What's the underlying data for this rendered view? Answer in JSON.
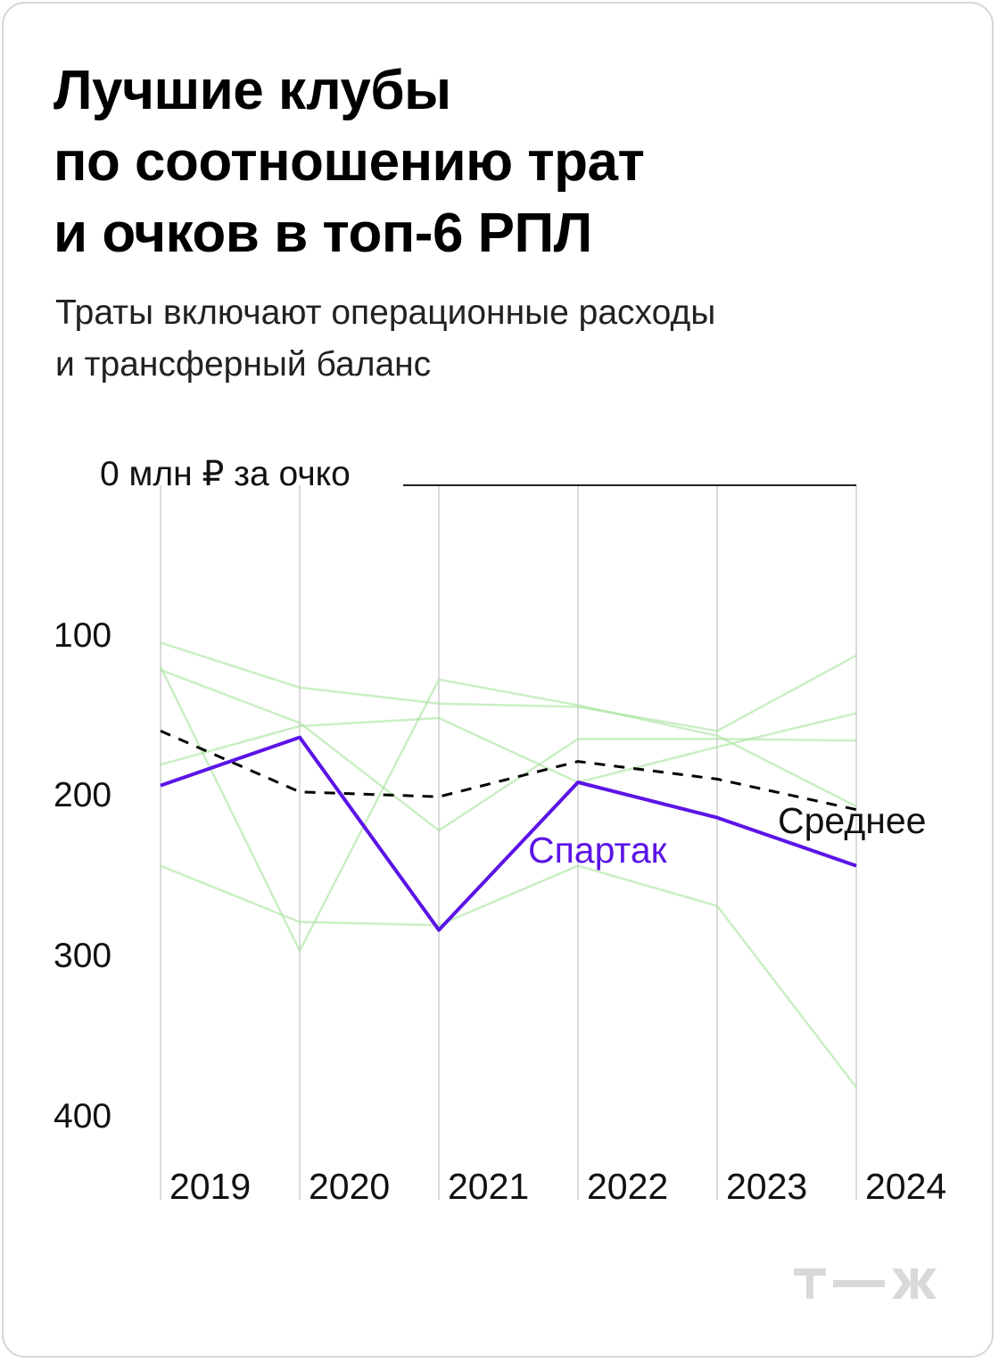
{
  "title": "Лучшие клубы\nпо соотношению трат\nи очков в топ-6 РПЛ",
  "subtitle": "Траты включают операционные расходы\nи трансферный баланс",
  "brand": "Т—Ж",
  "colors": {
    "highlight": "#5b14e6",
    "other": "#a6e39c",
    "average": "#000000",
    "grid": "#cfcfcf",
    "text": "#111111"
  },
  "chart_data": {
    "type": "line",
    "title": "Лучшие клубы по соотношению трат и очков в топ-6 РПЛ",
    "x": [
      "2019",
      "2020",
      "2021",
      "2022",
      "2023",
      "2024"
    ],
    "y_unit_label": "0 млн ₽ за очко",
    "y_ticks": [
      0,
      100,
      200,
      300,
      400
    ],
    "y_tick_labels": [
      "0 млн ₽ за очко",
      "100",
      "200",
      "300",
      "400"
    ],
    "ylim": [
      0,
      430
    ],
    "y_inverted": true,
    "grid": "vertical",
    "series": [
      {
        "name": "Спартак",
        "role": "highlight",
        "values": [
          187,
          157,
          277,
          185,
          207,
          237
        ]
      },
      {
        "name": "Среднее",
        "role": "average",
        "style": "dashed",
        "values": [
          153,
          191,
          194,
          172,
          183,
          202
        ]
      },
      {
        "role": "other",
        "values": [
          98,
          126,
          136,
          138,
          153,
          106
        ]
      },
      {
        "role": "other",
        "values": [
          115,
          148,
          215,
          158,
          158,
          159
        ]
      },
      {
        "role": "other",
        "values": [
          113,
          290,
          121,
          137,
          156,
          200
        ]
      },
      {
        "role": "other",
        "values": [
          174,
          150,
          145,
          185,
          163,
          142
        ]
      },
      {
        "role": "other",
        "values": [
          237,
          272,
          274,
          237,
          262,
          375
        ]
      }
    ]
  }
}
